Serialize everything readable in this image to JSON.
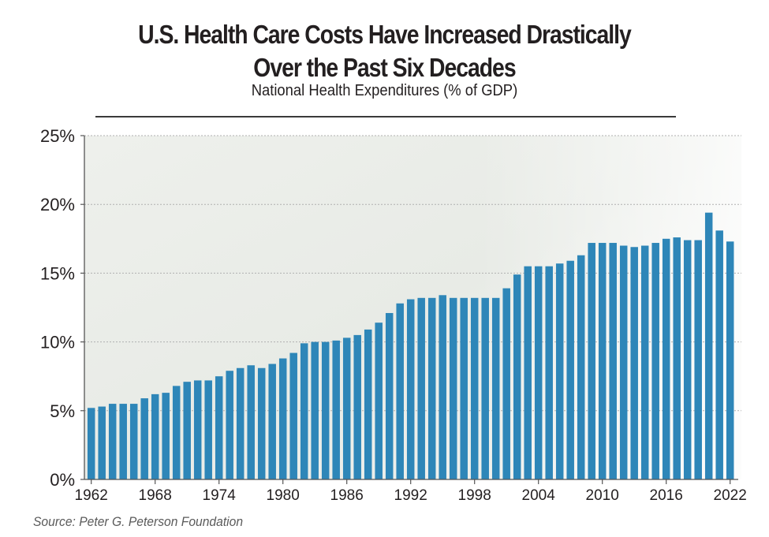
{
  "header": {
    "title_line1": "U.S. Health Care Costs Have Increased Drastically",
    "title_line2": "Over the Past Six Decades",
    "subtitle": "National Health Expenditures (% of GDP)"
  },
  "footer": {
    "source": "Source: Peter G. Peterson Foundation"
  },
  "colors": {
    "bar": "#2e86b8",
    "axis": "#555555",
    "grid": "#b0b0b0",
    "text": "#231f20"
  },
  "chart_data": {
    "type": "bar",
    "title": "U.S. Health Care Costs Have Increased Drastically Over the Past Six Decades",
    "subtitle": "National Health Expenditures (% of GDP)",
    "xlabel": "",
    "ylabel": "",
    "ylim": [
      0,
      25
    ],
    "grid": true,
    "legend": "none",
    "y_ticks": [
      0,
      5,
      10,
      15,
      20,
      25
    ],
    "y_tick_labels": [
      "0%",
      "5%",
      "10%",
      "15%",
      "20%",
      "25%"
    ],
    "x_ticks": [
      1962,
      1968,
      1974,
      1980,
      1986,
      1992,
      1998,
      2004,
      2010,
      2016,
      2022
    ],
    "x_tick_labels": [
      "1962",
      "1968",
      "1974",
      "1980",
      "1986",
      "1992",
      "1998",
      "2004",
      "2010",
      "2016",
      "2022"
    ],
    "categories": [
      1962,
      1963,
      1964,
      1965,
      1966,
      1967,
      1968,
      1969,
      1970,
      1971,
      1972,
      1973,
      1974,
      1975,
      1976,
      1977,
      1978,
      1979,
      1980,
      1981,
      1982,
      1983,
      1984,
      1985,
      1986,
      1987,
      1988,
      1989,
      1990,
      1991,
      1992,
      1993,
      1994,
      1995,
      1996,
      1997,
      1998,
      1999,
      2000,
      2001,
      2002,
      2003,
      2004,
      2005,
      2006,
      2007,
      2008,
      2009,
      2010,
      2011,
      2012,
      2013,
      2014,
      2015,
      2016,
      2017,
      2018,
      2019,
      2020,
      2021,
      2022
    ],
    "values": [
      5.2,
      5.3,
      5.5,
      5.5,
      5.5,
      5.9,
      6.2,
      6.3,
      6.8,
      7.1,
      7.2,
      7.2,
      7.5,
      7.9,
      8.1,
      8.3,
      8.1,
      8.4,
      8.8,
      9.2,
      9.9,
      10.0,
      10.0,
      10.1,
      10.3,
      10.5,
      10.9,
      11.4,
      12.1,
      12.8,
      13.1,
      13.2,
      13.2,
      13.4,
      13.2,
      13.2,
      13.2,
      13.2,
      13.2,
      13.9,
      14.9,
      15.5,
      15.5,
      15.5,
      15.7,
      15.9,
      16.3,
      17.2,
      17.2,
      17.2,
      17.0,
      16.9,
      17.0,
      17.2,
      17.5,
      17.6,
      17.4,
      17.4,
      19.4,
      18.1,
      17.3
    ]
  }
}
